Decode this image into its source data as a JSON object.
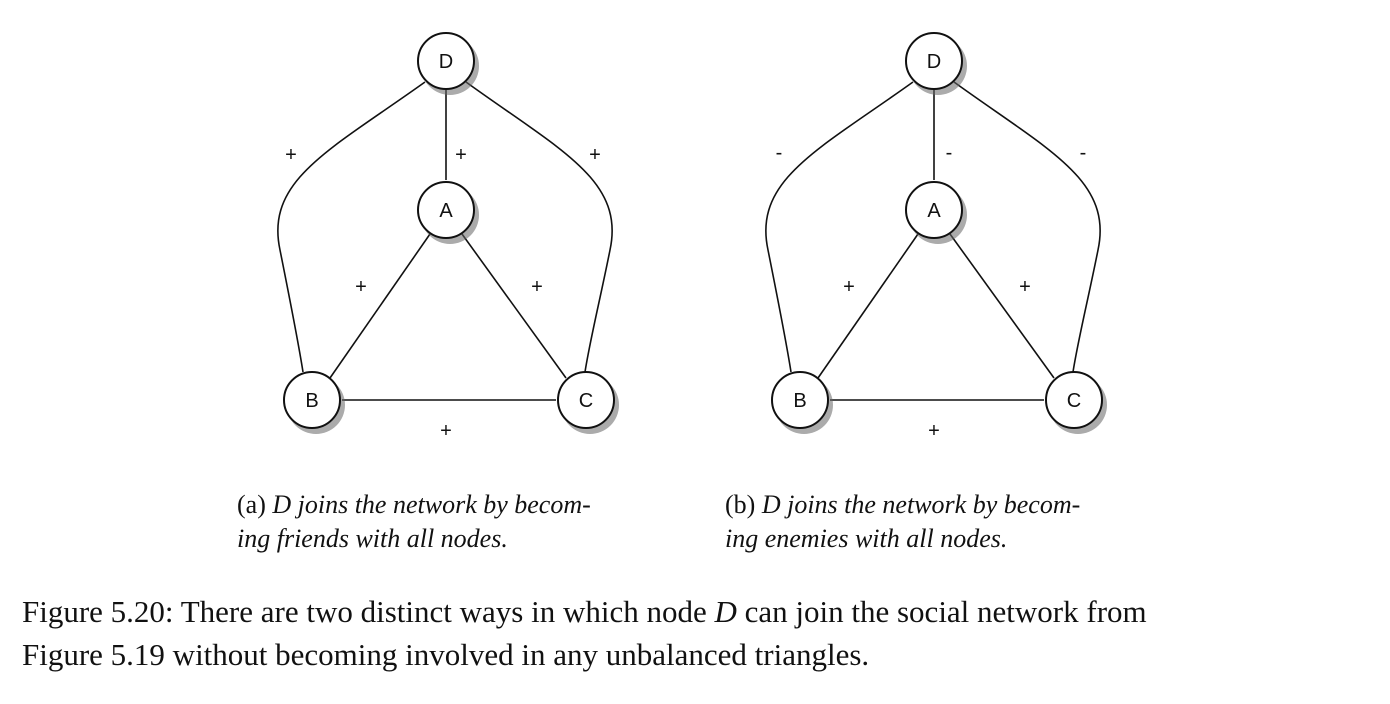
{
  "panels": [
    {
      "id": "a",
      "nodes": {
        "D": "D",
        "A": "A",
        "B": "B",
        "C": "C"
      },
      "signs": {
        "DB": "+",
        "DA": "+",
        "DC": "+",
        "AB": "+",
        "AC": "+",
        "BC": "+"
      },
      "caption": {
        "tag": "(a)",
        "line1": "D joins the network by becom-",
        "line2": "ing friends with all nodes."
      }
    },
    {
      "id": "b",
      "nodes": {
        "D": "D",
        "A": "A",
        "B": "B",
        "C": "C"
      },
      "signs": {
        "DB": "-",
        "DA": "-",
        "DC": "-",
        "AB": "+",
        "AC": "+",
        "BC": "+"
      },
      "caption": {
        "tag": "(b)",
        "line1": "D joins the network by becom-",
        "line2": "ing enemies with all nodes."
      }
    }
  ],
  "figure_caption": {
    "line1_pre": "Figure 5.20: There are two distinct ways in which node ",
    "line1_node": "D",
    "line1_post": " can join the social network from",
    "line2": "Figure 5.19 without becoming involved in any unbalanced triangles."
  }
}
